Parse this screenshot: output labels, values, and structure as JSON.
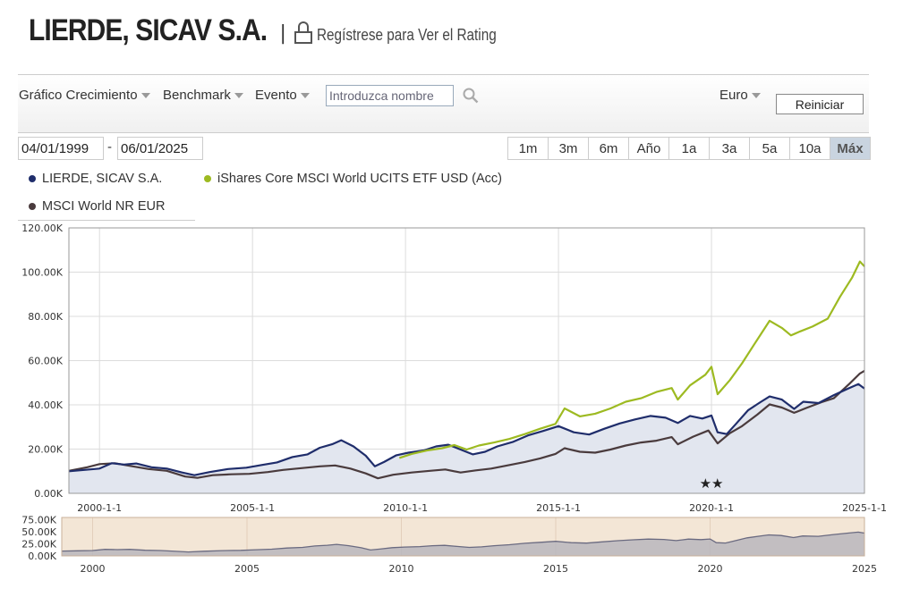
{
  "header": {
    "fund_title": "LIERDE, SICAV S.A.",
    "separator": "|",
    "register_link": "Regístrese para Ver el Rating"
  },
  "toolbar": {
    "menus": [
      {
        "label": "Gráfico Crecimiento"
      },
      {
        "label": "Benchmark"
      },
      {
        "label": "Evento"
      }
    ],
    "search_placeholder": "Introduzca nombre",
    "currency": "Euro",
    "reset_label": "Reiniciar"
  },
  "date_range": {
    "start": "04/01/1999",
    "separator": "-",
    "end": "06/01/2025"
  },
  "range_buttons": [
    {
      "label": "1m",
      "active": false
    },
    {
      "label": "3m",
      "active": false
    },
    {
      "label": "6m",
      "active": false
    },
    {
      "label": "Año",
      "active": false
    },
    {
      "label": "1a",
      "active": false
    },
    {
      "label": "3a",
      "active": false
    },
    {
      "label": "5a",
      "active": false
    },
    {
      "label": "10a",
      "active": false
    },
    {
      "label": "Máx",
      "active": true
    }
  ],
  "chart_data": {
    "type": "line",
    "y_tick_labels": [
      "0.00K",
      "20.00K",
      "40.00K",
      "60.00K",
      "80.00K",
      "100.00K",
      "120.00K"
    ],
    "y_ticks": [
      0,
      20000,
      40000,
      60000,
      80000,
      100000,
      120000
    ],
    "ylim": [
      0,
      120000
    ],
    "x_tick_labels": [
      "2000-1-1",
      "2005-1-1",
      "2010-1-1",
      "2015-1-1",
      "2020-1-1",
      "2025-1-1"
    ],
    "x_ticks": [
      2000,
      2005,
      2010,
      2015,
      2020,
      2025
    ],
    "xlim": [
      1999.0,
      2025.0
    ],
    "grid": true,
    "legend_position": "top-left",
    "event_markers": {
      "x": [
        2019.8,
        2020.2
      ],
      "label": "★★"
    },
    "series": [
      {
        "name": "LIERDE, SICAV S.A.",
        "color": "#1f2d6b",
        "area_fill": "#e2e6ef",
        "points": [
          [
            1999.0,
            10000
          ],
          [
            1999.5,
            10600
          ],
          [
            2000.0,
            11200
          ],
          [
            2000.4,
            13600
          ],
          [
            2000.8,
            13000
          ],
          [
            2001.2,
            13500
          ],
          [
            2001.7,
            11800
          ],
          [
            2002.2,
            11200
          ],
          [
            2002.7,
            9400
          ],
          [
            2003.1,
            8200
          ],
          [
            2003.6,
            9600
          ],
          [
            2004.2,
            11000
          ],
          [
            2004.8,
            11600
          ],
          [
            2005.3,
            12800
          ],
          [
            2005.8,
            14000
          ],
          [
            2006.3,
            16400
          ],
          [
            2006.8,
            17600
          ],
          [
            2007.2,
            20600
          ],
          [
            2007.6,
            22200
          ],
          [
            2007.9,
            24000
          ],
          [
            2008.3,
            21200
          ],
          [
            2008.7,
            17000
          ],
          [
            2009.0,
            12200
          ],
          [
            2009.3,
            14200
          ],
          [
            2009.7,
            17200
          ],
          [
            2010.1,
            18400
          ],
          [
            2010.6,
            19400
          ],
          [
            2011.0,
            21200
          ],
          [
            2011.4,
            22000
          ],
          [
            2011.8,
            19800
          ],
          [
            2012.2,
            17600
          ],
          [
            2012.6,
            18800
          ],
          [
            2013.0,
            21200
          ],
          [
            2013.5,
            23200
          ],
          [
            2014.0,
            26200
          ],
          [
            2014.5,
            28200
          ],
          [
            2015.0,
            30400
          ],
          [
            2015.5,
            27600
          ],
          [
            2016.0,
            26600
          ],
          [
            2016.5,
            29200
          ],
          [
            2017.0,
            31600
          ],
          [
            2017.5,
            33400
          ],
          [
            2018.0,
            35000
          ],
          [
            2018.5,
            34200
          ],
          [
            2018.9,
            31800
          ],
          [
            2019.3,
            35000
          ],
          [
            2019.7,
            33800
          ],
          [
            2020.0,
            35200
          ],
          [
            2020.2,
            27600
          ],
          [
            2020.5,
            26800
          ],
          [
            2020.8,
            31400
          ],
          [
            2021.2,
            37600
          ],
          [
            2021.6,
            41200
          ],
          [
            2021.9,
            43800
          ],
          [
            2022.3,
            42400
          ],
          [
            2022.7,
            38200
          ],
          [
            2023.0,
            41400
          ],
          [
            2023.5,
            40800
          ],
          [
            2024.0,
            44400
          ],
          [
            2024.5,
            47600
          ],
          [
            2024.8,
            49400
          ],
          [
            2025.0,
            47400
          ]
        ]
      },
      {
        "name": "iShares Core MSCI World UCITS ETF USD (Acc)",
        "color": "#9dba21",
        "points": [
          [
            2009.8,
            16000
          ],
          [
            2010.2,
            17800
          ],
          [
            2010.7,
            19400
          ],
          [
            2011.2,
            20400
          ],
          [
            2011.6,
            21800
          ],
          [
            2012.0,
            19800
          ],
          [
            2012.4,
            21600
          ],
          [
            2012.9,
            23000
          ],
          [
            2013.4,
            24600
          ],
          [
            2013.9,
            26800
          ],
          [
            2014.4,
            29200
          ],
          [
            2014.9,
            31400
          ],
          [
            2015.2,
            38400
          ],
          [
            2015.7,
            34800
          ],
          [
            2016.2,
            36000
          ],
          [
            2016.7,
            38400
          ],
          [
            2017.2,
            41400
          ],
          [
            2017.7,
            43000
          ],
          [
            2018.2,
            45800
          ],
          [
            2018.7,
            47600
          ],
          [
            2018.9,
            42400
          ],
          [
            2019.3,
            48800
          ],
          [
            2019.8,
            53600
          ],
          [
            2020.0,
            57200
          ],
          [
            2020.2,
            44800
          ],
          [
            2020.6,
            51200
          ],
          [
            2021.0,
            58800
          ],
          [
            2021.4,
            67400
          ],
          [
            2021.9,
            78000
          ],
          [
            2022.3,
            74800
          ],
          [
            2022.6,
            71400
          ],
          [
            2022.9,
            73200
          ],
          [
            2023.3,
            75400
          ],
          [
            2023.8,
            79000
          ],
          [
            2024.2,
            88800
          ],
          [
            2024.6,
            97600
          ],
          [
            2024.85,
            104800
          ],
          [
            2025.0,
            102600
          ]
        ]
      },
      {
        "name": "MSCI World NR EUR",
        "color": "#4a3b3d",
        "points": [
          [
            1999.0,
            10200
          ],
          [
            1999.6,
            11800
          ],
          [
            2000.0,
            13200
          ],
          [
            2000.5,
            13600
          ],
          [
            2001.0,
            12400
          ],
          [
            2001.6,
            11000
          ],
          [
            2002.2,
            10200
          ],
          [
            2002.8,
            7600
          ],
          [
            2003.2,
            7000
          ],
          [
            2003.7,
            8200
          ],
          [
            2004.3,
            8600
          ],
          [
            2004.9,
            8800
          ],
          [
            2005.5,
            9600
          ],
          [
            2006.0,
            10600
          ],
          [
            2006.6,
            11400
          ],
          [
            2007.2,
            12200
          ],
          [
            2007.7,
            12600
          ],
          [
            2008.2,
            11200
          ],
          [
            2008.7,
            9000
          ],
          [
            2009.1,
            6800
          ],
          [
            2009.6,
            8400
          ],
          [
            2010.2,
            9400
          ],
          [
            2010.8,
            10200
          ],
          [
            2011.3,
            10800
          ],
          [
            2011.8,
            9400
          ],
          [
            2012.3,
            10400
          ],
          [
            2012.8,
            11200
          ],
          [
            2013.4,
            12800
          ],
          [
            2013.9,
            14200
          ],
          [
            2014.4,
            15800
          ],
          [
            2014.9,
            17800
          ],
          [
            2015.2,
            20400
          ],
          [
            2015.7,
            18800
          ],
          [
            2016.2,
            18400
          ],
          [
            2016.7,
            19800
          ],
          [
            2017.2,
            21600
          ],
          [
            2017.7,
            23000
          ],
          [
            2018.2,
            23800
          ],
          [
            2018.7,
            25400
          ],
          [
            2018.9,
            22200
          ],
          [
            2019.4,
            25600
          ],
          [
            2019.9,
            28400
          ],
          [
            2020.2,
            22600
          ],
          [
            2020.6,
            27200
          ],
          [
            2021.0,
            30400
          ],
          [
            2021.5,
            35600
          ],
          [
            2021.9,
            40200
          ],
          [
            2022.3,
            38800
          ],
          [
            2022.7,
            36400
          ],
          [
            2023.1,
            38600
          ],
          [
            2023.6,
            41200
          ],
          [
            2024.0,
            43000
          ],
          [
            2024.5,
            49400
          ],
          [
            2024.85,
            54200
          ],
          [
            2025.0,
            55400
          ]
        ]
      }
    ],
    "navigator": {
      "y_tick_labels": [
        "75.00K",
        "50.00K",
        "25.00K",
        "0.00K"
      ],
      "y_ticks": [
        75000,
        50000,
        25000,
        0
      ],
      "ylim": [
        0,
        80000
      ],
      "x_tick_labels": [
        "2000",
        "2005",
        "2010",
        "2015",
        "2020",
        "2025"
      ],
      "x_ticks": [
        2000,
        2005,
        2010,
        2015,
        2020,
        2025
      ],
      "xlim": [
        1999.0,
        2025.0
      ],
      "series_ref": "LIERDE, SICAV S.A."
    }
  }
}
